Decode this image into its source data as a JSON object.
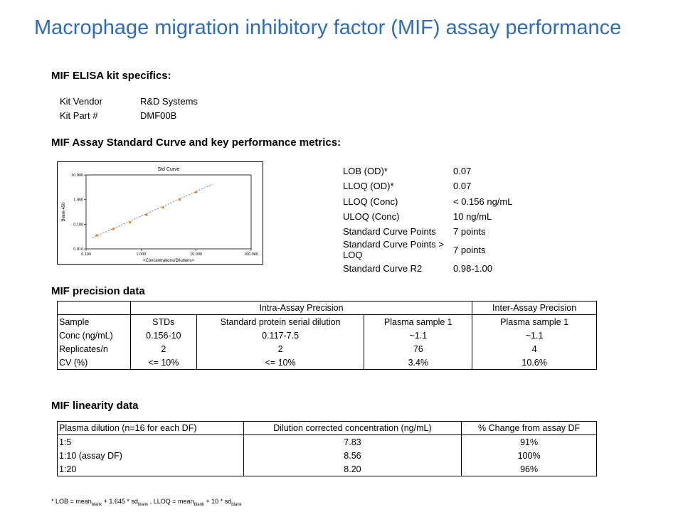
{
  "title": "Macrophage migration inhibitory factor (MIF) assay performance",
  "kit": {
    "heading": "MIF ELISA kit specifics:",
    "rows": [
      {
        "label": "Kit Vendor",
        "value": "R&D Systems"
      },
      {
        "label": "Kit Part #",
        "value": "DMF00B"
      }
    ]
  },
  "curve_heading": "MIF Assay Standard Curve and key performance metrics:",
  "metrics": [
    {
      "label": "LOB (OD)*",
      "value": "0.07"
    },
    {
      "label": "LLOQ (OD)*",
      "value": "0.07"
    },
    {
      "label": "LLOQ (Conc)",
      "value": "< 0.156 ng/mL"
    },
    {
      "label": "ULOQ (Conc)",
      "value": "10 ng/mL"
    },
    {
      "label": "Standard Curve Points",
      "value": "7 points"
    },
    {
      "label": "Standard Curve Points > LOQ",
      "value": "7 points"
    },
    {
      "label": "Standard Curve R2",
      "value": "0.98-1.00"
    }
  ],
  "chart_data": {
    "type": "scatter",
    "title": "Std Curve",
    "xlabel": "<Concentrations/Dilutions>",
    "ylabel": "Blank-450",
    "xscale": "log",
    "yscale": "log",
    "xlim": [
      0.1,
      100
    ],
    "ylim": [
      0.01,
      10
    ],
    "xticks": [
      "0.100",
      "1.000",
      "10.000",
      "100.000"
    ],
    "yticks": [
      "0.010",
      "0.100",
      "1.000",
      "10.000"
    ],
    "points": [
      {
        "x": 0.156,
        "y": 0.035
      },
      {
        "x": 0.313,
        "y": 0.065
      },
      {
        "x": 0.625,
        "y": 0.12
      },
      {
        "x": 1.25,
        "y": 0.24
      },
      {
        "x": 2.5,
        "y": 0.48
      },
      {
        "x": 5,
        "y": 1.0
      },
      {
        "x": 10,
        "y": 2.0
      }
    ],
    "fit_line": {
      "x": [
        0.13,
        20
      ],
      "y": [
        0.028,
        4.2
      ]
    },
    "colors": {
      "points": "#E8892A",
      "line": "#3A5FB0"
    }
  },
  "precision": {
    "heading": "MIF precision data",
    "group_intra": "Intra-Assay Precision",
    "group_inter": "Inter-Assay Precision",
    "header": [
      "Sample",
      "STDs",
      "Standard protein serial dilution",
      "Plasma sample 1",
      "Plasma sample 1"
    ],
    "rows": [
      [
        "Conc (ng/mL)",
        "0.156-10",
        "0.117-7.5",
        "~1.1",
        "~1.1"
      ],
      [
        "Replicates/n",
        "2",
        "2",
        "76",
        "4"
      ],
      [
        "CV (%)",
        "<= 10%",
        "<= 10%",
        "3.4%",
        "10.6%"
      ]
    ]
  },
  "linearity": {
    "heading": "MIF linearity data",
    "header": [
      "Plasma dilution (n=16 for each DF)",
      "Dilution corrected concentration (ng/mL)",
      "% Change from assay DF"
    ],
    "rows": [
      [
        "1:5",
        "7.83",
        "91%"
      ],
      [
        "1:10 (assay DF)",
        "8.56",
        "100%"
      ],
      [
        "1:20",
        "8.20",
        "96%"
      ]
    ]
  },
  "footnote": {
    "p1": "* LOB = mean",
    "s1": "blank",
    "p2": " + 1.645 * sd",
    "s2": "blank",
    "p3": " , LLOQ = mean",
    "s3": "blank",
    "p4": " + 10 * sd",
    "s4": "blank"
  }
}
